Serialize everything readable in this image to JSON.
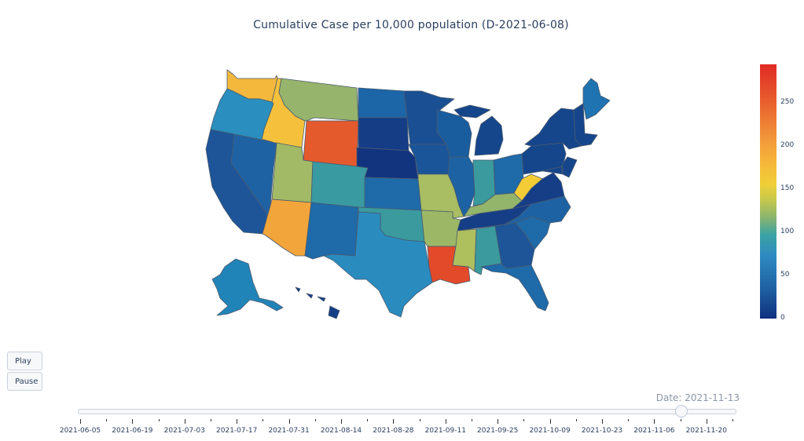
{
  "title": "Cumulative Case per 10,000 population (D-2021-06-08)",
  "colorbar": {
    "ticks": [
      "0",
      "50",
      "100",
      "150",
      "200",
      "250"
    ],
    "colors": [
      "#10307f",
      "#1f62a3",
      "#2f8bc1",
      "#3ba3a3",
      "#8cb56d",
      "#c8c94a",
      "#f0cf38",
      "#f6b43a",
      "#ea6b2f",
      "#e02a25"
    ]
  },
  "buttons": {
    "play": "Play",
    "pause": "Pause"
  },
  "slider": {
    "current_label": "Date: 2021-11-13",
    "current_value": "2021-11-13",
    "tick_labels": [
      "2021-06-05",
      "2021-06-19",
      "2021-07-03",
      "2021-07-17",
      "2021-07-31",
      "2021-08-14",
      "2021-08-28",
      "2021-09-11",
      "2021-09-25",
      "2021-10-09",
      "2021-10-23",
      "2021-11-06",
      "2021-11-20"
    ]
  },
  "states": {
    "WA": "#f4b93c",
    "OR": "#2a8fbe",
    "CA": "#1d5598",
    "NV": "#1f62a3",
    "ID": "#f5c13c",
    "MT": "#96b46b",
    "WY": "#e55a2c",
    "UT": "#a2ba66",
    "AZ": "#f2a53a",
    "CO": "#3a9aa2",
    "NM": "#1f6aa8",
    "TX": "#2a8bbf",
    "ND": "#1c65a6",
    "SD": "#143d86",
    "NE": "#12347f",
    "KS": "#1f6aa8",
    "OK": "#3a9a9e",
    "MN": "#1a4f93",
    "IA": "#1a559a",
    "MO": "#a9bd62",
    "AR": "#9cb866",
    "LA": "#e34a2a",
    "WI": "#1a5d9e",
    "IL": "#1d62a3",
    "MI": "#15468c",
    "IN": "#3a9a9e",
    "OH": "#1f6aa8",
    "KY": "#93b46b",
    "TN": "#153e86",
    "MS": "#aebf5e",
    "AL": "#3a9a9e",
    "GA": "#1d5598",
    "FL": "#1f6aa8",
    "SC": "#1f6aa8",
    "NC": "#1d62a3",
    "VA": "#153e86",
    "WV": "#f4cc36",
    "PA": "#15468c",
    "NY": "#15468c",
    "ME": "#1f73b0",
    "NE_STATES": "#15468c",
    "AK": "#2184b8",
    "HI": "#153e86"
  }
}
